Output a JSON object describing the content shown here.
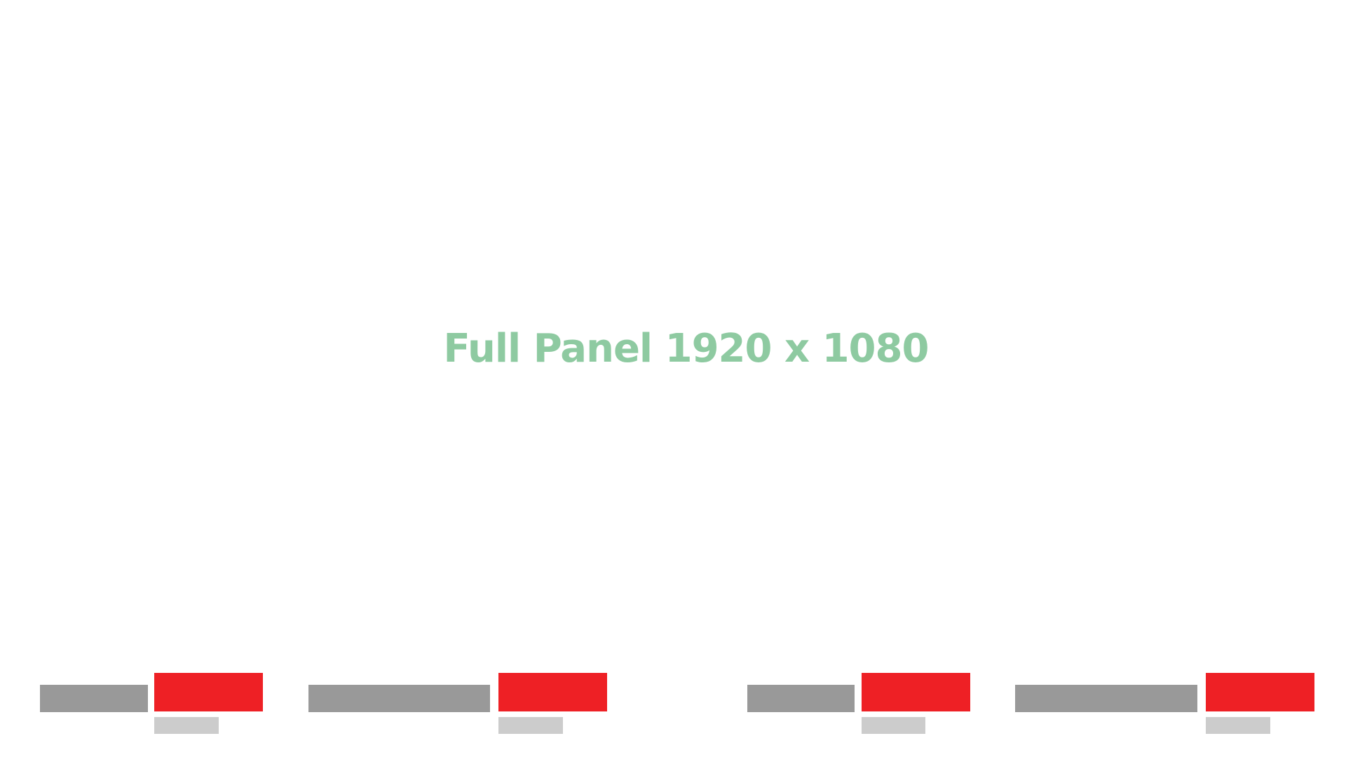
{
  "panel": {
    "label": "Full Panel 1920 x 1080",
    "label_color": "#8ecaa1",
    "background_color": "#ffffff"
  },
  "colors": {
    "bar_gray": "#999999",
    "bar_red": "#ee2025",
    "bar_light": "#cccccc"
  }
}
